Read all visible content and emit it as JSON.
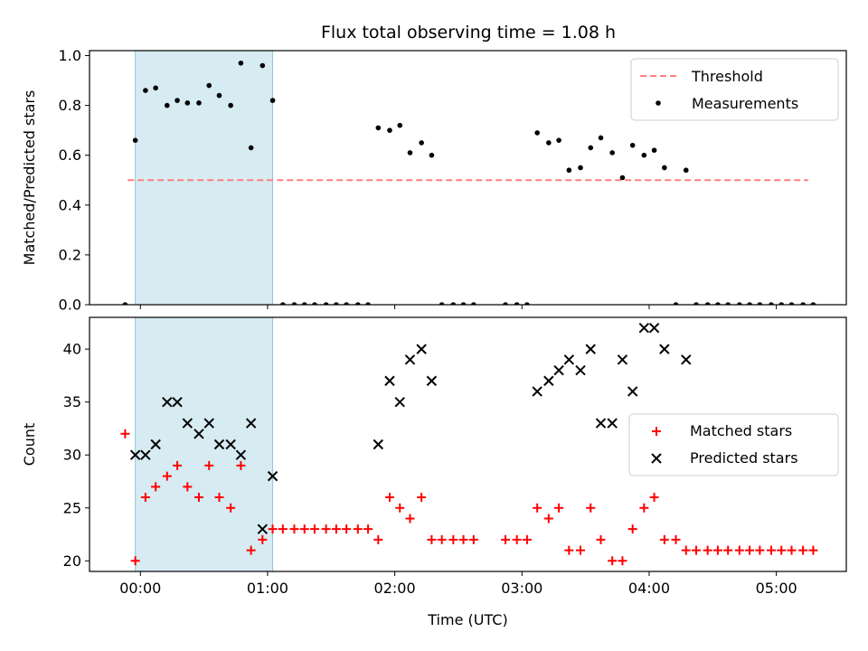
{
  "chart_data": [
    {
      "type": "scatter",
      "title": "Flux total observing time = 1.08 h",
      "xlabel": "",
      "ylabel": "Matched/Predicted stars",
      "xlim": [
        -0.4,
        5.55
      ],
      "ylim": [
        0,
        1.02
      ],
      "yticks": [
        0.0,
        0.2,
        0.4,
        0.6,
        0.8,
        1.0
      ],
      "ytick_labels": [
        "0.0",
        "0.2",
        "0.4",
        "0.6",
        "0.8",
        "1.0"
      ],
      "shaded_region": [
        -0.04,
        1.04
      ],
      "shade_color": "#add8e6",
      "threshold": {
        "value": 0.5,
        "x_range": [
          -0.1,
          5.25
        ],
        "color": "#ff7f7f"
      },
      "legend": {
        "placement": "upper right",
        "entries": [
          "Threshold",
          "Measurements"
        ]
      },
      "series": [
        {
          "name": "Measurements",
          "color": "#000000",
          "points": [
            [
              -0.12,
              0.0
            ],
            [
              -0.04,
              0.66
            ],
            [
              0.04,
              0.86
            ],
            [
              0.12,
              0.87
            ],
            [
              0.21,
              0.8
            ],
            [
              0.29,
              0.82
            ],
            [
              0.37,
              0.81
            ],
            [
              0.46,
              0.81
            ],
            [
              0.54,
              0.88
            ],
            [
              0.62,
              0.84
            ],
            [
              0.71,
              0.8
            ],
            [
              0.79,
              0.97
            ],
            [
              0.87,
              0.63
            ],
            [
              0.96,
              0.96
            ],
            [
              1.04,
              0.82
            ],
            [
              1.12,
              0.0
            ],
            [
              1.21,
              0.0
            ],
            [
              1.29,
              0.0
            ],
            [
              1.37,
              0.0
            ],
            [
              1.46,
              0.0
            ],
            [
              1.54,
              0.0
            ],
            [
              1.62,
              0.0
            ],
            [
              1.71,
              0.0
            ],
            [
              1.79,
              0.0
            ],
            [
              1.87,
              0.71
            ],
            [
              1.96,
              0.7
            ],
            [
              2.04,
              0.72
            ],
            [
              2.12,
              0.61
            ],
            [
              2.21,
              0.65
            ],
            [
              2.29,
              0.6
            ],
            [
              2.37,
              0.0
            ],
            [
              2.46,
              0.0
            ],
            [
              2.54,
              0.0
            ],
            [
              2.62,
              0.0
            ],
            [
              2.87,
              0.0
            ],
            [
              2.96,
              0.0
            ],
            [
              3.04,
              0.0
            ],
            [
              3.12,
              0.69
            ],
            [
              3.21,
              0.65
            ],
            [
              3.29,
              0.66
            ],
            [
              3.37,
              0.54
            ],
            [
              3.46,
              0.55
            ],
            [
              3.54,
              0.63
            ],
            [
              3.62,
              0.67
            ],
            [
              3.71,
              0.61
            ],
            [
              3.79,
              0.51
            ],
            [
              3.87,
              0.64
            ],
            [
              3.96,
              0.6
            ],
            [
              4.04,
              0.62
            ],
            [
              4.12,
              0.55
            ],
            [
              4.21,
              0.0
            ],
            [
              4.29,
              0.54
            ],
            [
              4.37,
              0.0
            ],
            [
              4.46,
              0.0
            ],
            [
              4.54,
              0.0
            ],
            [
              4.62,
              0.0
            ],
            [
              4.71,
              0.0
            ],
            [
              4.79,
              0.0
            ],
            [
              4.87,
              0.0
            ],
            [
              4.96,
              0.0
            ],
            [
              5.04,
              0.0
            ],
            [
              5.12,
              0.0
            ],
            [
              5.21,
              0.0
            ],
            [
              5.29,
              0.0
            ]
          ]
        }
      ]
    },
    {
      "type": "scatter",
      "title": "",
      "xlabel": "Time (UTC)",
      "ylabel": "Count",
      "xlim": [
        -0.4,
        5.55
      ],
      "ylim": [
        19,
        43
      ],
      "xticks": [
        0,
        1,
        2,
        3,
        4,
        5
      ],
      "xtick_labels": [
        "00:00",
        "01:00",
        "02:00",
        "03:00",
        "04:00",
        "05:00"
      ],
      "yticks": [
        20,
        25,
        30,
        35,
        40
      ],
      "ytick_labels": [
        "20",
        "25",
        "30",
        "35",
        "40"
      ],
      "shaded_region": [
        -0.04,
        1.04
      ],
      "shade_color": "#add8e6",
      "legend": {
        "placement": "center right",
        "entries": [
          "Matched stars",
          "Predicted stars"
        ]
      },
      "series": [
        {
          "name": "Matched stars",
          "marker": "plus",
          "color": "#ff0000",
          "points": [
            [
              -0.12,
              32
            ],
            [
              -0.04,
              20
            ],
            [
              0.04,
              26
            ],
            [
              0.12,
              27
            ],
            [
              0.21,
              28
            ],
            [
              0.29,
              29
            ],
            [
              0.37,
              27
            ],
            [
              0.46,
              26
            ],
            [
              0.54,
              29
            ],
            [
              0.62,
              26
            ],
            [
              0.71,
              25
            ],
            [
              0.79,
              29
            ],
            [
              0.87,
              21
            ],
            [
              0.96,
              22
            ],
            [
              1.04,
              23
            ],
            [
              1.12,
              23
            ],
            [
              1.21,
              23
            ],
            [
              1.29,
              23
            ],
            [
              1.37,
              23
            ],
            [
              1.46,
              23
            ],
            [
              1.54,
              23
            ],
            [
              1.62,
              23
            ],
            [
              1.71,
              23
            ],
            [
              1.79,
              23
            ],
            [
              1.87,
              22
            ],
            [
              1.96,
              26
            ],
            [
              2.04,
              25
            ],
            [
              2.12,
              24
            ],
            [
              2.21,
              26
            ],
            [
              2.29,
              22
            ],
            [
              2.37,
              22
            ],
            [
              2.46,
              22
            ],
            [
              2.54,
              22
            ],
            [
              2.62,
              22
            ],
            [
              2.87,
              22
            ],
            [
              2.96,
              22
            ],
            [
              3.04,
              22
            ],
            [
              3.12,
              25
            ],
            [
              3.21,
              24
            ],
            [
              3.29,
              25
            ],
            [
              3.37,
              21
            ],
            [
              3.46,
              21
            ],
            [
              3.54,
              25
            ],
            [
              3.62,
              22
            ],
            [
              3.71,
              20
            ],
            [
              3.79,
              20
            ],
            [
              3.87,
              23
            ],
            [
              3.96,
              25
            ],
            [
              4.04,
              26
            ],
            [
              4.12,
              22
            ],
            [
              4.21,
              22
            ],
            [
              4.29,
              21
            ],
            [
              4.37,
              21
            ],
            [
              4.46,
              21
            ],
            [
              4.54,
              21
            ],
            [
              4.62,
              21
            ],
            [
              4.71,
              21
            ],
            [
              4.79,
              21
            ],
            [
              4.87,
              21
            ],
            [
              4.96,
              21
            ],
            [
              5.04,
              21
            ],
            [
              5.12,
              21
            ],
            [
              5.21,
              21
            ],
            [
              5.29,
              21
            ]
          ]
        },
        {
          "name": "Predicted stars",
          "marker": "x",
          "color": "#000000",
          "points": [
            [
              -0.04,
              30
            ],
            [
              0.04,
              30
            ],
            [
              0.12,
              31
            ],
            [
              0.21,
              35
            ],
            [
              0.29,
              35
            ],
            [
              0.37,
              33
            ],
            [
              0.46,
              32
            ],
            [
              0.54,
              33
            ],
            [
              0.62,
              31
            ],
            [
              0.71,
              31
            ],
            [
              0.79,
              30
            ],
            [
              0.87,
              33
            ],
            [
              0.96,
              23
            ],
            [
              1.04,
              28
            ],
            [
              1.87,
              31
            ],
            [
              1.96,
              37
            ],
            [
              2.04,
              35
            ],
            [
              2.12,
              39
            ],
            [
              2.21,
              40
            ],
            [
              2.29,
              37
            ],
            [
              3.12,
              36
            ],
            [
              3.21,
              37
            ],
            [
              3.29,
              38
            ],
            [
              3.37,
              39
            ],
            [
              3.46,
              38
            ],
            [
              3.54,
              40
            ],
            [
              3.62,
              33
            ],
            [
              3.71,
              33
            ],
            [
              3.79,
              39
            ],
            [
              3.87,
              36
            ],
            [
              3.96,
              42
            ],
            [
              4.04,
              42
            ],
            [
              4.12,
              40
            ],
            [
              4.29,
              39
            ]
          ]
        }
      ]
    }
  ]
}
